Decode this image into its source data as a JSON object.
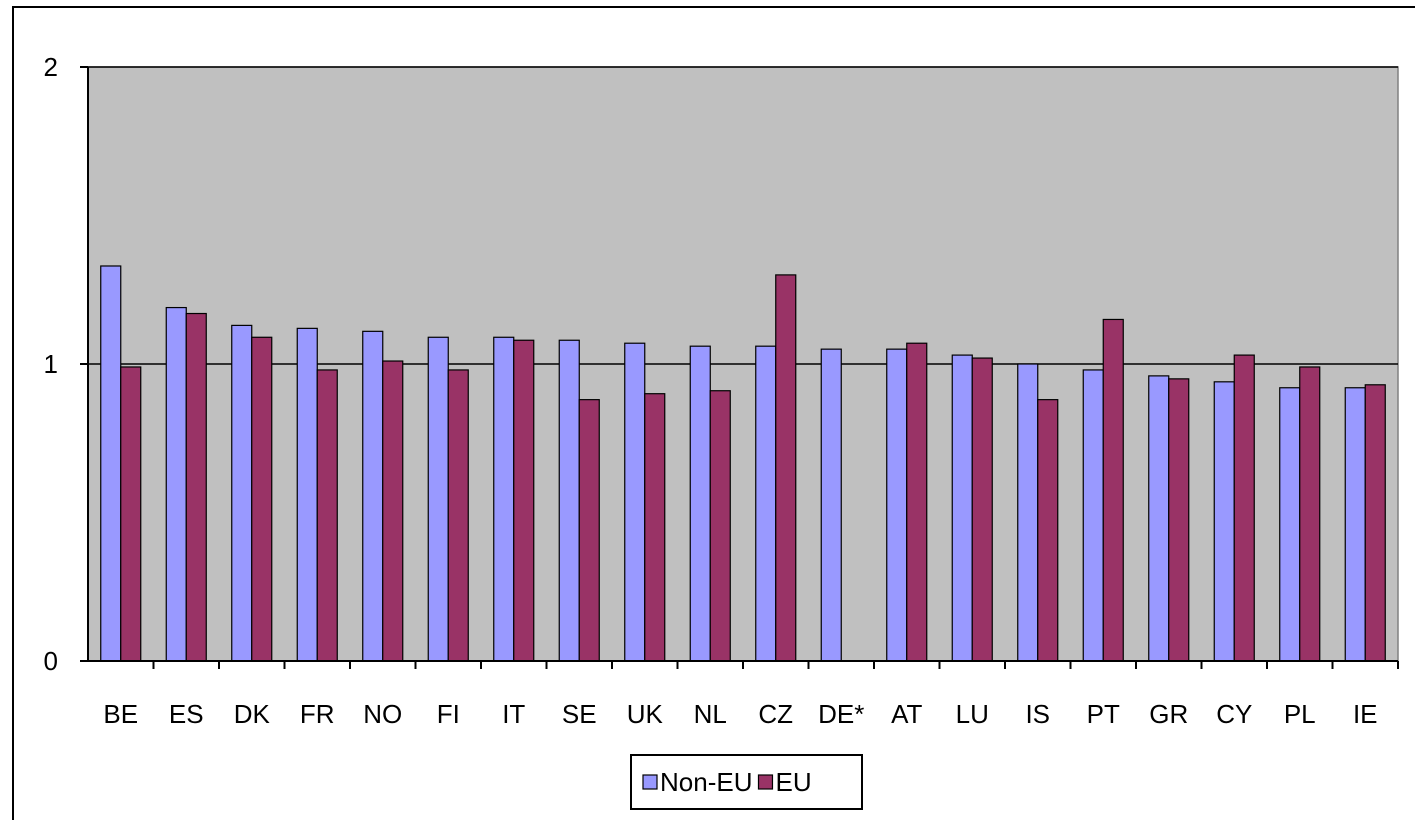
{
  "chart_data": {
    "type": "bar",
    "title": "",
    "xlabel": "",
    "ylabel": "",
    "ylim": [
      0,
      2
    ],
    "yticks": [
      0,
      1,
      2
    ],
    "grid": "major y-gridline at 1",
    "legend_position": "bottom",
    "categories": [
      "BE",
      "ES",
      "DK",
      "FR",
      "NO",
      "FI",
      "IT",
      "SE",
      "UK",
      "NL",
      "CZ",
      "DE*",
      "AT",
      "LU",
      "IS",
      "PT",
      "GR",
      "CY",
      "PL",
      "IE"
    ],
    "series": [
      {
        "name": "Non-EU",
        "color": "#9999FF",
        "values": [
          1.33,
          1.19,
          1.13,
          1.12,
          1.11,
          1.09,
          1.09,
          1.08,
          1.07,
          1.06,
          1.06,
          1.05,
          1.05,
          1.03,
          1.0,
          0.98,
          0.96,
          0.94,
          0.92,
          0.92
        ]
      },
      {
        "name": "EU",
        "color": "#993366",
        "values": [
          0.99,
          1.17,
          1.09,
          0.98,
          1.01,
          0.98,
          1.08,
          0.88,
          0.9,
          0.91,
          1.3,
          null,
          1.07,
          1.02,
          0.88,
          1.15,
          0.95,
          1.03,
          0.99,
          0.93
        ]
      }
    ],
    "plot_background": "#C0C0C0"
  }
}
